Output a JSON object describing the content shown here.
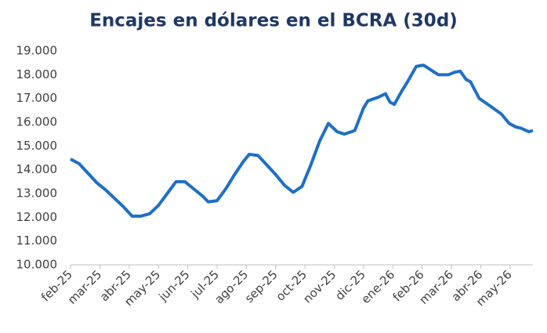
{
  "chart_data": {
    "type": "line",
    "title": "Encajes en dólares en el BCRA (30d)",
    "x": [
      0,
      0.3,
      0.6,
      0.9,
      1.2,
      1.5,
      1.8,
      2.1,
      2.4,
      2.7,
      3.0,
      3.3,
      3.6,
      3.9,
      4.2,
      4.5,
      4.7,
      5.0,
      5.3,
      5.6,
      5.9,
      6.1,
      6.4,
      6.7,
      7.0,
      7.3,
      7.6,
      7.9,
      8.2,
      8.5,
      8.8,
      9.1,
      9.35,
      9.7,
      10.0,
      10.15,
      10.5,
      10.75,
      10.9,
      11.05,
      11.3,
      11.5,
      11.8,
      12.05,
      12.3,
      12.55,
      12.9,
      13.1,
      13.3,
      13.5,
      13.65,
      13.95,
      14.3,
      14.7,
      14.97,
      15.2,
      15.37,
      15.64,
      15.78
    ],
    "series": [
      {
        "color": "#1f6fc5",
        "values": [
          14450,
          14250,
          13850,
          13450,
          13150,
          12800,
          12450,
          12050,
          12050,
          12150,
          12500,
          13000,
          13500,
          13500,
          13200,
          12900,
          12650,
          12700,
          13200,
          13800,
          14350,
          14650,
          14600,
          14200,
          13800,
          13350,
          13050,
          13300,
          14200,
          15200,
          15950,
          15600,
          15500,
          15650,
          16600,
          16900,
          17050,
          17200,
          16850,
          16750,
          17300,
          17700,
          18350,
          18400,
          18200,
          18000,
          18000,
          18100,
          18150,
          17800,
          17700,
          17000,
          16700,
          16350,
          15950,
          15800,
          15750,
          15600,
          15650
        ]
      }
    ],
    "ylim": [
      10000,
      19000
    ],
    "yticks": [
      {
        "value": 10000,
        "label": "10.000"
      },
      {
        "value": 11000,
        "label": "11.000"
      },
      {
        "value": 12000,
        "label": "12.000"
      },
      {
        "value": 13000,
        "label": "13.000"
      },
      {
        "value": 14000,
        "label": "14.000"
      },
      {
        "value": 15000,
        "label": "15.000"
      },
      {
        "value": 16000,
        "label": "16.000"
      },
      {
        "value": 17000,
        "label": "17.000"
      },
      {
        "value": 18000,
        "label": "18.000"
      },
      {
        "value": 19000,
        "label": "19.000"
      }
    ],
    "xlim": [
      0,
      15.78
    ],
    "xticks": [
      {
        "value": 0,
        "label": "feb-25"
      },
      {
        "value": 1,
        "label": "mar-25"
      },
      {
        "value": 2,
        "label": "abr-25"
      },
      {
        "value": 3,
        "label": "may-25"
      },
      {
        "value": 4,
        "label": "jun-25"
      },
      {
        "value": 5,
        "label": "jul-25"
      },
      {
        "value": 6,
        "label": "ago-25"
      },
      {
        "value": 7,
        "label": "sep-25"
      },
      {
        "value": 8,
        "label": "oct-25"
      },
      {
        "value": 9,
        "label": "nov-25"
      },
      {
        "value": 10,
        "label": "dic-25"
      },
      {
        "value": 11,
        "label": "ene-26"
      },
      {
        "value": 12,
        "label": "feb-26"
      },
      {
        "value": 13,
        "label": "mar-26"
      },
      {
        "value": 14,
        "label": "abr-26"
      },
      {
        "value": 15,
        "label": "may-26"
      }
    ]
  }
}
